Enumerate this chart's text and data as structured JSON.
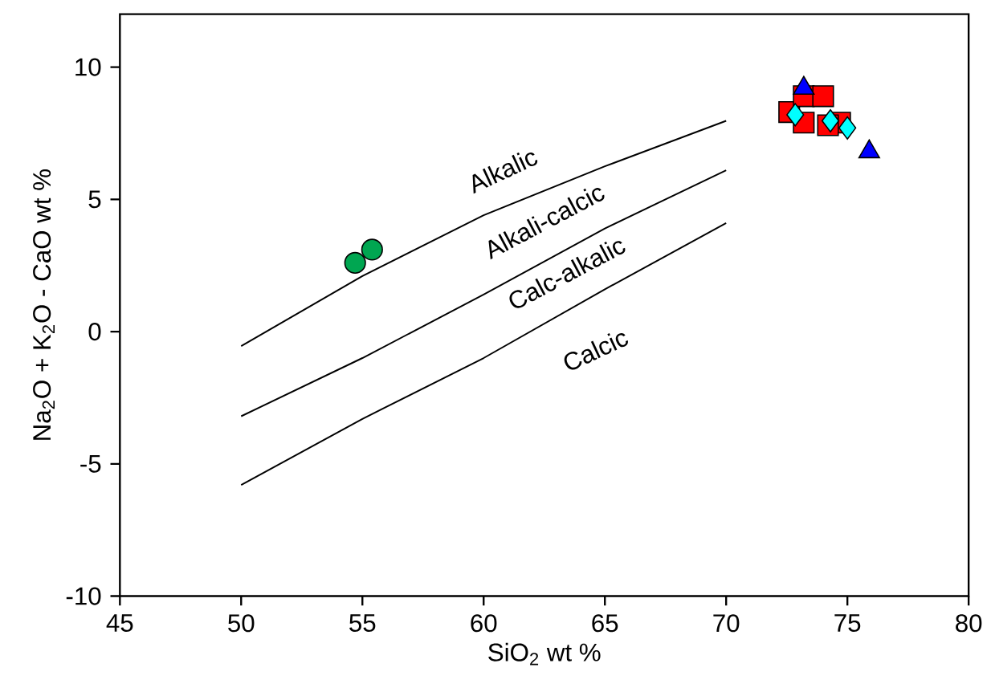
{
  "chart_data": {
    "type": "scatter",
    "xlabel": "SiO$_{2}$ wt %",
    "ylabel": "Na$_{2}$O + K$_{2}$O - CaO  wt %",
    "xlim": [
      45,
      80
    ],
    "ylim": [
      -10,
      12
    ],
    "xticks": [
      45,
      50,
      55,
      60,
      65,
      70,
      75,
      80
    ],
    "yticks": [
      -10,
      -5,
      0,
      5,
      10
    ],
    "grid": false,
    "series": [
      {
        "type": "line",
        "color": "#000000",
        "marker": "none",
        "x": [
          50,
          55,
          60,
          65,
          70
        ],
        "values": [
          -0.55,
          2.1,
          4.4,
          6.25,
          7.97
        ]
      },
      {
        "type": "line",
        "color": "#000000",
        "marker": "none",
        "x": [
          50,
          55,
          60,
          65,
          70
        ],
        "values": [
          -3.2,
          -1.0,
          1.4,
          3.9,
          6.1
        ]
      },
      {
        "type": "line",
        "color": "#000000",
        "marker": "none",
        "x": [
          50,
          55,
          60,
          65,
          70
        ],
        "values": [
          -5.8,
          -3.3,
          -1.0,
          1.6,
          4.1
        ]
      },
      {
        "color": "#00a651",
        "marker": "circle",
        "x": [
          54.7,
          55.4
        ],
        "values": [
          2.6,
          3.1
        ]
      },
      {
        "color": "#ff0000",
        "marker": "square",
        "x": [
          72.6,
          73.2,
          74.0,
          73.2,
          74.7,
          74.2
        ],
        "values": [
          8.3,
          8.9,
          8.9,
          7.9,
          7.9,
          7.8
        ]
      },
      {
        "color": "#0000ff",
        "marker": "triangle",
        "x": [
          73.2,
          75.9
        ],
        "values": [
          9.2,
          6.8
        ]
      },
      {
        "color": "#00ffff",
        "marker": "diamond",
        "x": [
          72.85,
          74.3,
          75.0
        ],
        "values": [
          8.2,
          7.97,
          7.7
        ]
      }
    ],
    "annotations": [
      "Alkalic",
      "Alkali-calcic",
      "Calc-alkalic",
      "Calcic"
    ]
  }
}
